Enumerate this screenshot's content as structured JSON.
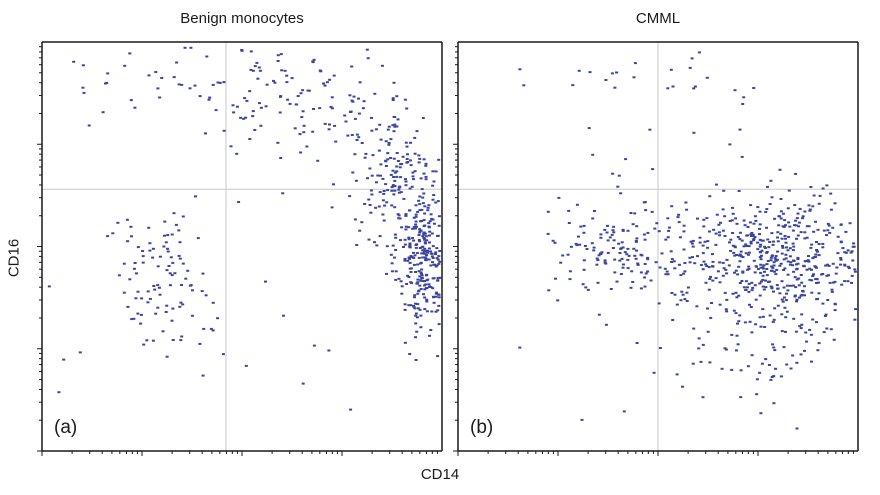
{
  "figure": {
    "xlabel": "CD14",
    "ylabel": "CD16",
    "point_color": "#3b45a0",
    "axis_color": "#1a1a1a",
    "quadrant_line_color": "#c8c8c8"
  },
  "chart_data": [
    {
      "type": "scatter",
      "title": "Benign monocytes",
      "panel_label": "(a)",
      "xlabel": "CD14",
      "ylabel": "CD16",
      "xlim": [
        0,
        1
      ],
      "ylim": [
        0,
        1
      ],
      "log_scale": true,
      "grid": false,
      "quadrant_gate": {
        "x": 0.46,
        "y": 0.64
      },
      "clusters": [
        {
          "cx": 0.96,
          "cy": 0.47,
          "sx": 0.035,
          "sy": 0.09,
          "n": 300
        },
        {
          "cx": 0.88,
          "cy": 0.68,
          "sx": 0.06,
          "sy": 0.1,
          "n": 170
        },
        {
          "cx": 0.63,
          "cy": 0.86,
          "sx": 0.14,
          "sy": 0.07,
          "n": 110
        },
        {
          "cx": 0.3,
          "cy": 0.42,
          "sx": 0.06,
          "sy": 0.08,
          "n": 95
        },
        {
          "cx": 0.35,
          "cy": 0.92,
          "sx": 0.15,
          "sy": 0.05,
          "n": 35
        },
        {
          "cx": 0.5,
          "cy": 0.35,
          "sx": 0.25,
          "sy": 0.2,
          "n": 25
        }
      ]
    },
    {
      "type": "scatter",
      "title": "CMML",
      "panel_label": "(b)",
      "xlabel": "CD14",
      "ylabel": "CD16",
      "xlim": [
        0,
        1
      ],
      "ylim": [
        0,
        1
      ],
      "log_scale": true,
      "grid": false,
      "quadrant_gate": {
        "x": 0.5,
        "y": 0.64
      },
      "clusters": [
        {
          "cx": 0.8,
          "cy": 0.48,
          "sx": 0.12,
          "sy": 0.07,
          "n": 480
        },
        {
          "cx": 0.42,
          "cy": 0.49,
          "sx": 0.1,
          "sy": 0.06,
          "n": 150
        },
        {
          "cx": 0.78,
          "cy": 0.3,
          "sx": 0.12,
          "sy": 0.08,
          "n": 110
        },
        {
          "cx": 0.55,
          "cy": 0.9,
          "sx": 0.2,
          "sy": 0.07,
          "n": 35
        },
        {
          "cx": 0.5,
          "cy": 0.3,
          "sx": 0.25,
          "sy": 0.2,
          "n": 35
        }
      ]
    }
  ]
}
